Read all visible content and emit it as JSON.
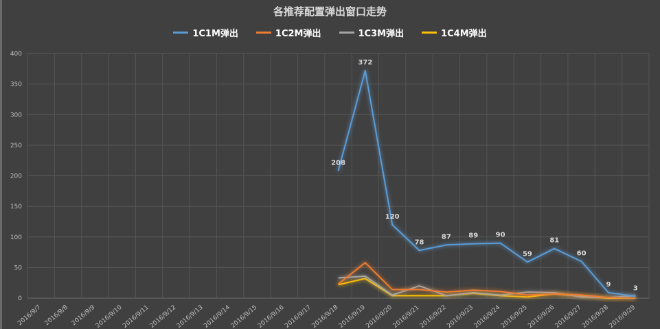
{
  "chart_data": {
    "type": "line",
    "title": "各推荐配置弹出窗口走势",
    "categories": [
      "2016/9/7",
      "2016/9/8",
      "2016/9/9",
      "2016/9/10",
      "2016/9/11",
      "2016/9/12",
      "2016/9/13",
      "2016/9/14",
      "2016/9/15",
      "2016/9/16",
      "2016/9/17",
      "2016/9/18",
      "2016/9/19",
      "2016/9/20",
      "2016/9/21",
      "2016/9/22",
      "2016/9/23",
      "2016/9/24",
      "2016/9/25",
      "2016/9/26",
      "2016/9/27",
      "2016/9/28",
      "2016/9/29"
    ],
    "ylim": [
      0,
      400
    ],
    "yticks": [
      0,
      50,
      100,
      150,
      200,
      250,
      300,
      350,
      400
    ],
    "grid": true,
    "legend_position": "top",
    "series": [
      {
        "name": "1C1M弹出",
        "color": "#5b9bd5",
        "labeled": true,
        "values": [
          null,
          null,
          null,
          null,
          null,
          null,
          null,
          null,
          null,
          null,
          null,
          208,
          372,
          120,
          78,
          87,
          89,
          90,
          59,
          81,
          60,
          9,
          3
        ]
      },
      {
        "name": "1C2M弹出",
        "color": "#ed7d31",
        "labeled": false,
        "values": [
          null,
          null,
          null,
          null,
          null,
          null,
          null,
          null,
          null,
          null,
          null,
          23,
          58,
          14,
          14,
          10,
          13,
          11,
          5,
          7,
          5,
          1,
          0
        ]
      },
      {
        "name": "1C3M弹出",
        "color": "#a5a5a5",
        "labeled": false,
        "values": [
          null,
          null,
          null,
          null,
          null,
          null,
          null,
          null,
          null,
          null,
          null,
          33,
          36,
          5,
          20,
          4,
          9,
          5,
          10,
          9,
          2,
          1,
          4
        ]
      },
      {
        "name": "1C4M弹出",
        "color": "#ffc000",
        "labeled": false,
        "values": [
          null,
          null,
          null,
          null,
          null,
          null,
          null,
          null,
          null,
          null,
          null,
          22,
          32,
          4,
          4,
          4,
          8,
          4,
          2,
          7,
          3,
          0,
          0
        ]
      }
    ]
  }
}
